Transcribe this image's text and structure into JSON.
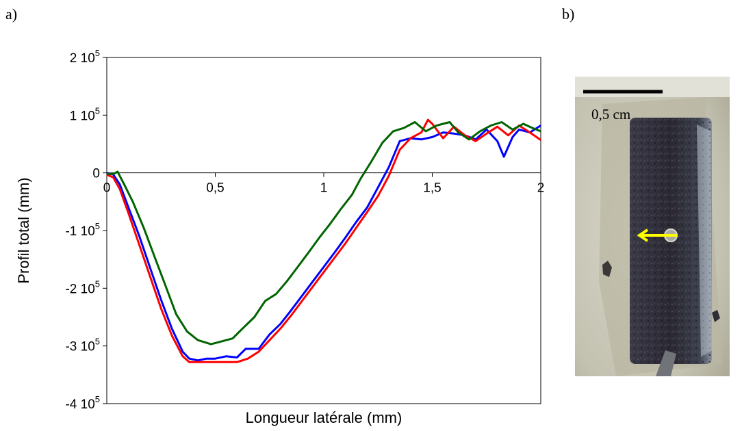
{
  "panels": {
    "a": "a)",
    "b": "b)"
  },
  "chart_data": {
    "type": "line",
    "xlabel": "Longueur latérale (mm)",
    "ylabel": "Profil total (mm)",
    "xlim": [
      0,
      2
    ],
    "ylim": [
      -400000,
      200000
    ],
    "x_ticks": [
      {
        "value": 0,
        "label": "0"
      },
      {
        "value": 0.5,
        "label": "0,5"
      },
      {
        "value": 1,
        "label": "1"
      },
      {
        "value": 1.5,
        "label": "1,5"
      },
      {
        "value": 2,
        "label": "2"
      }
    ],
    "y_ticks": [
      {
        "value": 200000,
        "mant": "2 10",
        "exp": "5"
      },
      {
        "value": 100000,
        "mant": "1 10",
        "exp": "5"
      },
      {
        "value": 0,
        "mant": "0",
        "exp": ""
      },
      {
        "value": -100000,
        "mant": "-1 10",
        "exp": "5"
      },
      {
        "value": -200000,
        "mant": "-2 10",
        "exp": "5"
      },
      {
        "value": -300000,
        "mant": "-3 10",
        "exp": "5"
      },
      {
        "value": -400000,
        "mant": "-4 10",
        "exp": "5"
      }
    ],
    "grid": false,
    "series": [
      {
        "color": "#0000ff",
        "points": [
          [
            0,
            0
          ],
          [
            0.03,
            -3000
          ],
          [
            0.06,
            -20000
          ],
          [
            0.1,
            -60000
          ],
          [
            0.15,
            -110000
          ],
          [
            0.2,
            -165000
          ],
          [
            0.25,
            -220000
          ],
          [
            0.3,
            -270000
          ],
          [
            0.35,
            -310000
          ],
          [
            0.38,
            -322000
          ],
          [
            0.42,
            -325000
          ],
          [
            0.46,
            -322000
          ],
          [
            0.5,
            -322000
          ],
          [
            0.55,
            -318000
          ],
          [
            0.6,
            -320000
          ],
          [
            0.64,
            -305000
          ],
          [
            0.7,
            -305000
          ],
          [
            0.75,
            -280000
          ],
          [
            0.8,
            -262000
          ],
          [
            0.85,
            -238000
          ],
          [
            0.9,
            -213000
          ],
          [
            0.95,
            -188000
          ],
          [
            1.0,
            -163000
          ],
          [
            1.05,
            -138000
          ],
          [
            1.1,
            -112000
          ],
          [
            1.15,
            -85000
          ],
          [
            1.2,
            -60000
          ],
          [
            1.25,
            -25000
          ],
          [
            1.3,
            10000
          ],
          [
            1.35,
            55000
          ],
          [
            1.4,
            60000
          ],
          [
            1.45,
            58000
          ],
          [
            1.5,
            62000
          ],
          [
            1.55,
            70000
          ],
          [
            1.6,
            68000
          ],
          [
            1.65,
            65000
          ],
          [
            1.7,
            58000
          ],
          [
            1.75,
            75000
          ],
          [
            1.8,
            55000
          ],
          [
            1.83,
            28000
          ],
          [
            1.87,
            62000
          ],
          [
            1.9,
            75000
          ],
          [
            1.95,
            70000
          ],
          [
            2.0,
            82000
          ]
        ]
      },
      {
        "color": "#ff0000",
        "points": [
          [
            0,
            -3000
          ],
          [
            0.03,
            -8000
          ],
          [
            0.06,
            -28000
          ],
          [
            0.1,
            -70000
          ],
          [
            0.15,
            -125000
          ],
          [
            0.2,
            -180000
          ],
          [
            0.25,
            -235000
          ],
          [
            0.3,
            -282000
          ],
          [
            0.35,
            -318000
          ],
          [
            0.38,
            -328000
          ],
          [
            0.45,
            -328000
          ],
          [
            0.5,
            -328000
          ],
          [
            0.55,
            -328000
          ],
          [
            0.6,
            -328000
          ],
          [
            0.65,
            -322000
          ],
          [
            0.7,
            -310000
          ],
          [
            0.75,
            -290000
          ],
          [
            0.8,
            -270000
          ],
          [
            0.85,
            -247000
          ],
          [
            0.9,
            -222000
          ],
          [
            0.95,
            -197000
          ],
          [
            1.0,
            -172000
          ],
          [
            1.05,
            -147000
          ],
          [
            1.1,
            -122000
          ],
          [
            1.15,
            -95000
          ],
          [
            1.2,
            -68000
          ],
          [
            1.25,
            -40000
          ],
          [
            1.3,
            -5000
          ],
          [
            1.35,
            40000
          ],
          [
            1.4,
            60000
          ],
          [
            1.45,
            70000
          ],
          [
            1.48,
            92000
          ],
          [
            1.5,
            85000
          ],
          [
            1.55,
            60000
          ],
          [
            1.6,
            80000
          ],
          [
            1.65,
            65000
          ],
          [
            1.7,
            55000
          ],
          [
            1.75,
            68000
          ],
          [
            1.8,
            80000
          ],
          [
            1.85,
            65000
          ],
          [
            1.9,
            82000
          ],
          [
            1.95,
            70000
          ],
          [
            2.0,
            57000
          ]
        ]
      },
      {
        "color": "#006400",
        "points": [
          [
            0,
            -2000
          ],
          [
            0.03,
            -2000
          ],
          [
            0.05,
            2000
          ],
          [
            0.08,
            -20000
          ],
          [
            0.12,
            -50000
          ],
          [
            0.17,
            -95000
          ],
          [
            0.22,
            -145000
          ],
          [
            0.27,
            -195000
          ],
          [
            0.32,
            -245000
          ],
          [
            0.37,
            -275000
          ],
          [
            0.42,
            -290000
          ],
          [
            0.48,
            -297000
          ],
          [
            0.52,
            -293000
          ],
          [
            0.58,
            -287000
          ],
          [
            0.62,
            -272000
          ],
          [
            0.68,
            -250000
          ],
          [
            0.73,
            -222000
          ],
          [
            0.78,
            -210000
          ],
          [
            0.83,
            -188000
          ],
          [
            0.88,
            -163000
          ],
          [
            0.93,
            -138000
          ],
          [
            0.98,
            -112000
          ],
          [
            1.03,
            -88000
          ],
          [
            1.08,
            -62000
          ],
          [
            1.13,
            -38000
          ],
          [
            1.17,
            -10000
          ],
          [
            1.22,
            20000
          ],
          [
            1.27,
            52000
          ],
          [
            1.32,
            72000
          ],
          [
            1.37,
            78000
          ],
          [
            1.42,
            88000
          ],
          [
            1.47,
            72000
          ],
          [
            1.52,
            82000
          ],
          [
            1.58,
            88000
          ],
          [
            1.62,
            70000
          ],
          [
            1.67,
            58000
          ],
          [
            1.72,
            72000
          ],
          [
            1.77,
            82000
          ],
          [
            1.82,
            88000
          ],
          [
            1.87,
            75000
          ],
          [
            1.92,
            85000
          ],
          [
            1.96,
            78000
          ],
          [
            2.0,
            72000
          ]
        ]
      }
    ]
  },
  "photo": {
    "scale_label": "0,5 cm",
    "arrow_color": "#ffff00"
  }
}
